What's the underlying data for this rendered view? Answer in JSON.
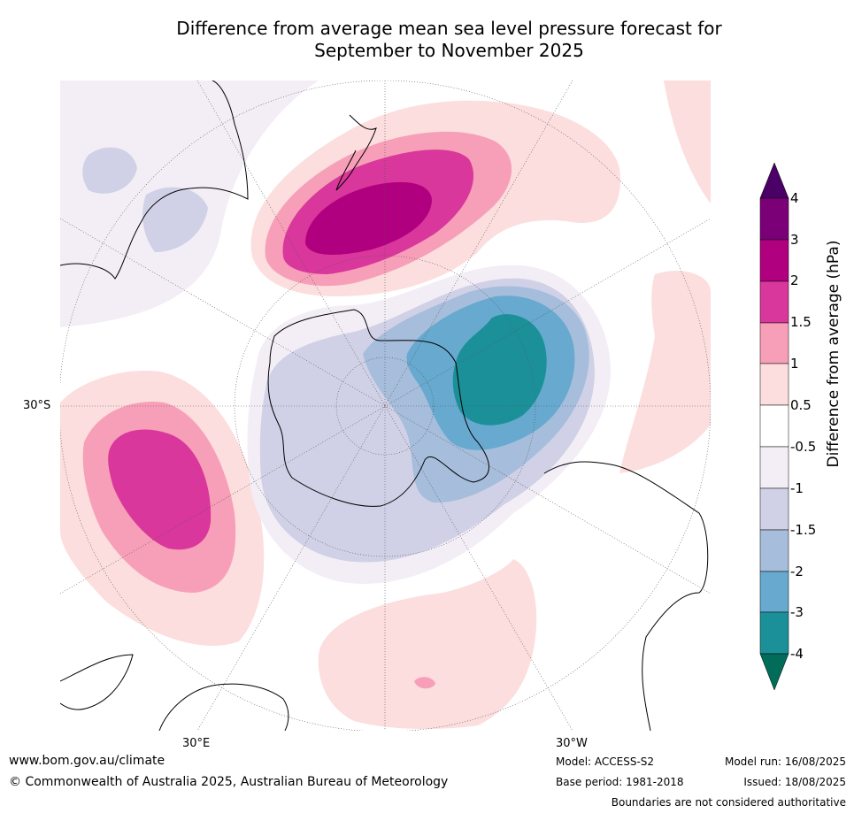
{
  "title": {
    "line1": "Difference from average mean sea level pressure forecast for",
    "line2": "September to November 2025"
  },
  "map_labels": {
    "lat_30s": "30°S",
    "lon_30e": "30°E",
    "lon_30w": "30°W"
  },
  "colorbar": {
    "label": "Difference from average (hPa)",
    "ticks": [
      "4",
      "3",
      "2",
      "1.5",
      "1",
      "0.5",
      "-0.5",
      "-1",
      "-1.5",
      "-2",
      "-3",
      "-4"
    ],
    "colors": {
      "above_4": "#4b0068",
      "3_to_4": "#7b0078",
      "2_to_3": "#b0007f",
      "1.5_to_2": "#d9379b",
      "1_to_1.5": "#f79fb8",
      "0.5_to_1": "#fbdedd",
      "-0.5_to_0.5": "#ffffff",
      "-1_to_-0.5": "#f3eef6",
      "-1.5_to_-1": "#d0d1e6",
      "-2_to_-1.5": "#a6bddb",
      "-3_to_-2": "#67a9cf",
      "-4_to_-3": "#1c9099",
      "below_-4": "#016c59"
    }
  },
  "footer": {
    "url": "www.bom.gov.au/climate",
    "copyright": "© Commonwealth of Australia 2025, Australian Bureau of Meteorology",
    "model": "Model: ACCESS-S2",
    "base_period": "Base period: 1981-2018",
    "model_run": "Model run: 16/08/2025",
    "issued": "Issued: 18/08/2025",
    "disclaimer": "Boundaries are not considered authoritative"
  }
}
